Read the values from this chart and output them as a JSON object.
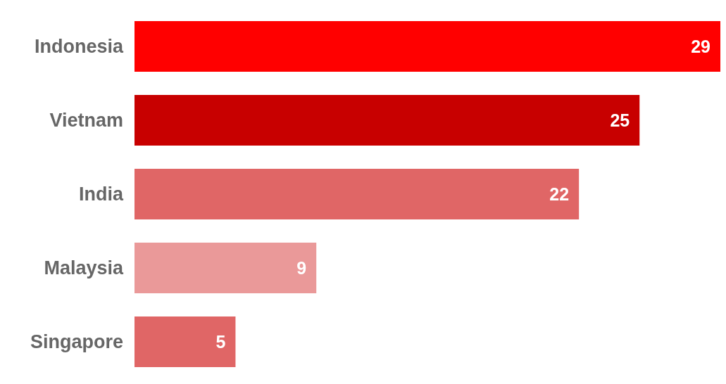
{
  "chart_data": {
    "type": "bar",
    "orientation": "horizontal",
    "categories": [
      "Indonesia",
      "Vietnam",
      "India",
      "Malaysia",
      "Singapore"
    ],
    "values": [
      29,
      25,
      22,
      9,
      5
    ],
    "colors": [
      "#ff0000",
      "#c80000",
      "#e06666",
      "#ea9999",
      "#e06666"
    ],
    "data_labels": true
  }
}
